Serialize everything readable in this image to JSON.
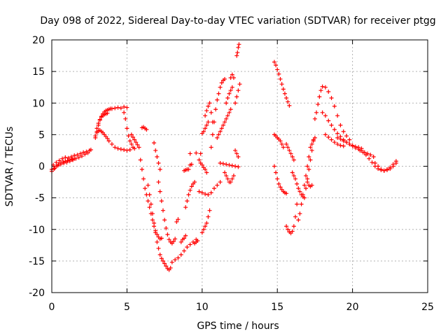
{
  "chart_data": {
    "type": "scatter",
    "title": "Day 098 of 2022, Sidereal Day-to-day VTEC variation (SDTVAR) for receiver ptgg",
    "xlabel": "GPS time / hours",
    "ylabel": "SDTVAR / TECUs",
    "xlim": [
      0,
      25
    ],
    "ylim": [
      -20,
      20
    ],
    "xticks": [
      0,
      5,
      10,
      15,
      20,
      25
    ],
    "yticks": [
      -20,
      -15,
      -10,
      -5,
      0,
      5,
      10,
      15,
      20
    ],
    "grid": true,
    "marker": "+",
    "color": "#ff0000",
    "series": [
      {
        "x": [
          0.0,
          0.1,
          0.2,
          0.3,
          0.4,
          0.5,
          0.6,
          0.7,
          0.8,
          0.9,
          1.0,
          1.1,
          1.2,
          1.3,
          1.4,
          1.5,
          1.6,
          1.7,
          1.8,
          1.9,
          2.0,
          2.1,
          2.2,
          2.3,
          2.4,
          2.5,
          2.6
        ],
        "y": [
          -0.5,
          0.2,
          -0.3,
          0.6,
          0.1,
          0.9,
          0.3,
          1.2,
          0.5,
          1.4,
          0.6,
          1.3,
          0.8,
          1.5,
          1.0,
          1.7,
          1.2,
          1.8,
          1.4,
          2.0,
          1.6,
          2.2,
          1.9,
          2.3,
          2.1,
          2.5,
          2.6
        ]
      },
      {
        "x": [
          0.0,
          0.15,
          0.3,
          0.45,
          0.6,
          0.75,
          0.9,
          1.05,
          1.2,
          1.35,
          1.5
        ],
        "y": [
          -0.8,
          -0.4,
          0.0,
          0.3,
          0.5,
          0.7,
          0.8,
          0.9,
          1.0,
          1.1,
          1.2
        ]
      },
      {
        "x": [
          2.9,
          3.0,
          3.1,
          3.2,
          3.3,
          3.4,
          3.5,
          3.6,
          3.7,
          3.8,
          3.9,
          4.0,
          4.2,
          4.4,
          4.6,
          4.8,
          5.0
        ],
        "y": [
          4.5,
          5.5,
          6.5,
          7.3,
          7.9,
          8.3,
          8.6,
          8.8,
          8.9,
          9.0,
          9.1,
          9.1,
          9.2,
          9.3,
          9.2,
          9.4,
          9.3
        ]
      },
      {
        "x": [
          2.9,
          3.0,
          3.1,
          3.2,
          3.3,
          3.4,
          3.5,
          3.6,
          3.7,
          3.8,
          4.0,
          4.2,
          4.4,
          4.6,
          4.8,
          5.0,
          5.2
        ],
        "y": [
          4.8,
          5.3,
          5.6,
          5.7,
          5.5,
          5.3,
          5.0,
          4.7,
          4.4,
          4.0,
          3.5,
          3.0,
          2.8,
          2.7,
          2.6,
          2.5,
          2.6
        ]
      },
      {
        "x": [
          3.0,
          3.1,
          3.2,
          3.3,
          3.4,
          3.5,
          3.6,
          3.7
        ],
        "y": [
          6.0,
          6.8,
          7.4,
          7.8,
          8.0,
          8.2,
          8.3,
          8.4
        ]
      },
      {
        "x": [
          4.8,
          4.9,
          5.0,
          5.1,
          5.2,
          5.3,
          5.4,
          5.5
        ],
        "y": [
          8.5,
          7.5,
          6.0,
          4.8,
          4.0,
          3.5,
          3.0,
          2.8
        ]
      },
      {
        "x": [
          5.3,
          5.4,
          5.5,
          5.6,
          5.7,
          5.8
        ],
        "y": [
          5.0,
          4.6,
          4.2,
          3.8,
          3.4,
          3.0
        ]
      },
      {
        "x": [
          6.0,
          6.1,
          6.2,
          6.3
        ],
        "y": [
          6.1,
          6.2,
          6.0,
          5.8
        ]
      },
      {
        "x": [
          5.9,
          6.0,
          6.1,
          6.2,
          6.3,
          6.4,
          6.5,
          6.6,
          6.7,
          6.8,
          6.9,
          7.0,
          7.1,
          7.2,
          7.3
        ],
        "y": [
          1.0,
          -0.5,
          -2.0,
          -3.5,
          -4.5,
          -5.5,
          -6.5,
          -7.5,
          -8.5,
          -9.5,
          -10.2,
          -10.8,
          -11.2,
          -11.5,
          -11.4
        ]
      },
      {
        "x": [
          6.4,
          6.5,
          6.6,
          6.7,
          6.8,
          6.9,
          7.0,
          7.1,
          7.2,
          7.3,
          7.4,
          7.5,
          7.6,
          7.7,
          7.8,
          7.9
        ],
        "y": [
          -3.0,
          -4.5,
          -6.0,
          -7.5,
          -9.0,
          -10.5,
          -12.0,
          -13.0,
          -14.0,
          -14.6,
          -15.0,
          -15.4,
          -15.8,
          -16.2,
          -16.4,
          -16.1
        ]
      },
      {
        "x": [
          7.1,
          7.2,
          7.3,
          7.4,
          7.5,
          7.6,
          7.7,
          7.8,
          7.9,
          8.0,
          8.1,
          8.2
        ],
        "y": [
          -2.5,
          -4.0,
          -5.5,
          -7.0,
          -8.5,
          -9.8,
          -10.8,
          -11.6,
          -12.0,
          -12.2,
          -11.9,
          -11.5
        ]
      },
      {
        "x": [
          6.8,
          6.9,
          7.0,
          7.1,
          7.2
        ],
        "y": [
          3.7,
          2.5,
          1.5,
          0.5,
          -0.5
        ]
      },
      {
        "x": [
          8.0,
          8.2,
          8.4,
          8.6,
          8.8,
          9.0,
          9.2,
          9.4,
          9.6
        ],
        "y": [
          -15.2,
          -14.8,
          -14.5,
          -14.0,
          -13.4,
          -12.8,
          -12.4,
          -12.0,
          -11.6
        ]
      },
      {
        "x": [
          8.6,
          8.7,
          8.8,
          8.9
        ],
        "y": [
          -12.0,
          -11.6,
          -11.4,
          -11.0
        ]
      },
      {
        "x": [
          8.3,
          8.4
        ],
        "y": [
          -8.8,
          -8.4
        ]
      },
      {
        "x": [
          8.9,
          9.0,
          9.1,
          9.2,
          9.3,
          9.4,
          9.5
        ],
        "y": [
          -6.5,
          -5.5,
          -4.5,
          -3.8,
          -3.2,
          -2.8,
          -2.5
        ]
      },
      {
        "x": [
          9.1,
          9.2,
          9.3
        ],
        "y": [
          -0.5,
          0.2,
          0.3
        ]
      },
      {
        "x": [
          8.8,
          8.9,
          9.0
        ],
        "y": [
          -0.7,
          -0.6,
          -0.5
        ]
      },
      {
        "x": [
          9.2,
          9.6,
          9.9
        ],
        "y": [
          2.0,
          2.1,
          2.0
        ]
      },
      {
        "x": [
          9.5,
          9.6,
          9.7
        ],
        "y": [
          -12.2,
          -12.0,
          -11.8
        ]
      },
      {
        "x": [
          10.0,
          10.1,
          10.2,
          10.3,
          10.4
        ],
        "y": [
          5.2,
          5.5,
          6.0,
          6.5,
          7.0
        ]
      },
      {
        "x": [
          10.2,
          10.3,
          10.4,
          10.5,
          10.6,
          10.7
        ],
        "y": [
          8.0,
          8.8,
          9.5,
          10.0,
          8.5,
          7.0
        ]
      },
      {
        "x": [
          10.0,
          10.1,
          10.2,
          10.3,
          10.4,
          10.5
        ],
        "y": [
          -10.5,
          -10.0,
          -9.5,
          -9.0,
          -8.0,
          -7.0
        ]
      },
      {
        "x": [
          9.8,
          9.9,
          10.0,
          10.1,
          10.2,
          10.3
        ],
        "y": [
          1.0,
          0.5,
          0.2,
          -0.2,
          -0.5,
          -1.0
        ]
      },
      {
        "x": [
          9.8,
          10.0,
          10.2,
          10.4,
          10.6,
          10.8,
          11.0,
          11.2
        ],
        "y": [
          -4.0,
          -4.2,
          -4.4,
          -4.5,
          -4.2,
          -3.5,
          -3.0,
          -2.5
        ]
      },
      {
        "x": [
          10.6,
          10.7,
          10.8,
          10.9,
          11.0,
          11.1,
          11.2,
          11.3,
          11.4,
          11.5
        ],
        "y": [
          3.0,
          5.0,
          7.0,
          9.0,
          10.5,
          11.5,
          12.5,
          13.2,
          13.6,
          13.8
        ]
      },
      {
        "x": [
          11.0,
          11.1,
          11.2,
          11.3,
          11.4,
          11.5,
          11.6,
          11.7,
          11.8,
          11.9
        ],
        "y": [
          4.5,
          5.0,
          5.5,
          6.0,
          6.5,
          7.0,
          7.5,
          8.0,
          8.5,
          9.0
        ]
      },
      {
        "x": [
          11.2,
          11.4,
          11.6,
          11.8,
          12.0,
          12.2,
          12.4
        ],
        "y": [
          0.5,
          0.4,
          0.3,
          0.2,
          0.1,
          0.0,
          -0.1
        ]
      },
      {
        "x": [
          11.5,
          11.6,
          11.7,
          11.8,
          11.9,
          12.0,
          12.1
        ],
        "y": [
          -1.0,
          -1.5,
          -2.0,
          -2.5,
          -2.5,
          -2.0,
          -1.5
        ]
      },
      {
        "x": [
          11.6,
          11.7,
          11.8,
          11.9,
          12.0
        ],
        "y": [
          10.0,
          10.8,
          11.5,
          12.0,
          12.5
        ]
      },
      {
        "x": [
          11.9,
          12.0,
          12.1
        ],
        "y": [
          14.0,
          14.5,
          14.0
        ]
      },
      {
        "x": [
          12.2,
          12.3,
          12.4,
          12.5
        ],
        "y": [
          10.0,
          11.0,
          12.0,
          13.0
        ]
      },
      {
        "x": [
          12.3,
          12.35,
          12.4,
          12.45
        ],
        "y": [
          17.5,
          18.0,
          18.8,
          19.3
        ]
      },
      {
        "x": [
          12.2,
          12.3,
          12.4
        ],
        "y": [
          2.5,
          2.0,
          1.5
        ]
      },
      {
        "x": [
          14.8,
          14.9,
          15.0,
          15.1,
          15.2,
          15.3,
          15.4,
          15.5,
          15.6,
          15.7,
          15.8
        ],
        "y": [
          16.5,
          16.0,
          15.3,
          14.6,
          13.8,
          13.0,
          12.2,
          11.5,
          10.8,
          10.2,
          9.6
        ]
      },
      {
        "x": [
          14.8,
          14.9,
          15.0,
          15.1,
          15.2,
          15.3,
          15.4
        ],
        "y": [
          5.0,
          4.8,
          4.5,
          4.3,
          4.0,
          3.5,
          3.0
        ]
      },
      {
        "x": [
          14.8,
          14.9,
          15.0,
          15.1,
          15.2,
          15.3,
          15.4,
          15.5,
          15.6
        ],
        "y": [
          0.0,
          -1.0,
          -2.0,
          -2.8,
          -3.3,
          -3.7,
          -4.0,
          -4.2,
          -4.3
        ]
      },
      {
        "x": [
          15.6,
          15.7,
          15.8,
          15.9,
          16.0,
          16.1
        ],
        "y": [
          3.5,
          3.0,
          2.5,
          2.0,
          1.5,
          1.0
        ]
      },
      {
        "x": [
          15.6,
          15.7,
          15.8,
          15.9,
          16.0,
          16.1,
          16.2,
          16.3
        ],
        "y": [
          -9.5,
          -10.0,
          -10.4,
          -10.6,
          -10.3,
          -9.5,
          -8.0,
          -6.0
        ]
      },
      {
        "x": [
          16.0,
          16.1,
          16.2,
          16.3,
          16.4,
          16.5,
          16.6,
          16.7
        ],
        "y": [
          -1.0,
          -1.5,
          -2.0,
          -2.8,
          -3.5,
          -4.0,
          -4.5,
          -4.8
        ]
      },
      {
        "x": [
          16.4,
          16.5,
          16.6,
          16.7,
          16.8,
          16.9,
          17.0,
          17.1
        ],
        "y": [
          -8.5,
          -7.5,
          -6.0,
          -4.5,
          -3.0,
          -1.5,
          0.0,
          1.5
        ]
      },
      {
        "x": [
          16.8,
          16.9,
          17.0,
          17.1,
          17.2,
          17.3,
          17.4
        ],
        "y": [
          -5.0,
          -3.5,
          -2.0,
          -0.5,
          1.0,
          2.5,
          4.0
        ]
      },
      {
        "x": [
          17.2,
          17.3,
          17.4,
          17.5
        ],
        "y": [
          3.0,
          3.5,
          4.2,
          4.5
        ]
      },
      {
        "x": [
          17.0,
          17.1,
          17.2,
          17.3
        ],
        "y": [
          -2.5,
          -3.0,
          -3.2,
          -3.0
        ]
      },
      {
        "x": [
          17.5,
          17.6,
          17.7,
          17.8,
          17.9,
          18.0,
          18.2,
          18.4,
          18.6,
          18.8,
          19.0,
          19.2,
          19.4,
          19.6,
          19.8
        ],
        "y": [
          7.5,
          8.5,
          9.8,
          11.0,
          12.0,
          12.6,
          12.5,
          11.8,
          10.8,
          9.5,
          8.0,
          6.5,
          5.5,
          4.8,
          4.2
        ]
      },
      {
        "x": [
          18.0,
          18.2,
          18.4,
          18.6,
          18.8,
          19.0,
          19.2,
          19.4,
          19.6,
          19.8,
          20.0,
          20.2,
          20.4,
          20.6
        ],
        "y": [
          8.5,
          8.0,
          7.2,
          6.5,
          5.8,
          5.2,
          4.7,
          4.2,
          3.8,
          3.5,
          3.3,
          3.1,
          3.0,
          2.8
        ]
      },
      {
        "x": [
          18.2,
          18.4,
          18.6,
          18.8,
          19.0,
          19.2,
          19.4
        ],
        "y": [
          5.0,
          4.6,
          4.2,
          3.8,
          3.5,
          3.3,
          3.2
        ]
      },
      {
        "x": [
          19.0,
          19.2,
          19.4,
          19.6,
          19.8,
          20.0,
          20.2,
          20.4,
          20.6,
          20.8,
          21.0,
          21.2,
          21.4
        ],
        "y": [
          4.5,
          4.3,
          4.0,
          3.8,
          3.5,
          3.2,
          2.9,
          2.7,
          2.5,
          2.2,
          2.0,
          1.8,
          1.5
        ]
      },
      {
        "x": [
          20.5,
          20.7,
          20.9,
          21.1,
          21.3,
          21.5,
          21.7,
          21.9,
          22.1,
          22.3,
          22.5,
          22.7,
          22.9
        ],
        "y": [
          2.5,
          2.2,
          1.8,
          1.2,
          0.6,
          0.0,
          -0.4,
          -0.6,
          -0.7,
          -0.5,
          -0.2,
          0.3,
          0.8
        ]
      },
      {
        "x": [
          21.5,
          21.7,
          21.9,
          22.1,
          22.3,
          22.5,
          22.7,
          22.9
        ],
        "y": [
          0.5,
          0.0,
          -0.5,
          -0.7,
          -0.6,
          -0.4,
          0.0,
          0.5
        ]
      }
    ]
  }
}
